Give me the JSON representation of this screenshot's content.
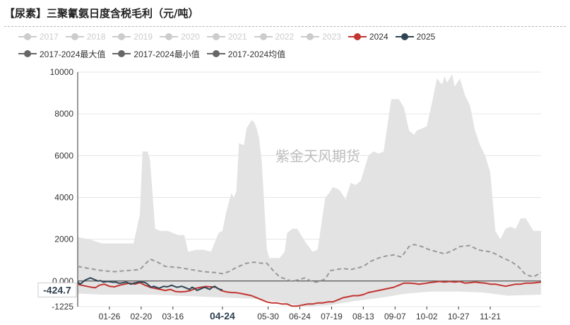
{
  "title": "【尿素】三聚氰氨日度含税毛利（元/吨）",
  "watermark": "紫金天风期货",
  "colors": {
    "inactive": "#cccccc",
    "s2024": "#c23531",
    "s2025": "#2f4554",
    "gray": "#666666",
    "range": "#e3e3e3",
    "mean": "#999999"
  },
  "legend": [
    {
      "name": "2017",
      "active": false
    },
    {
      "name": "2018",
      "active": false
    },
    {
      "name": "2019",
      "active": false
    },
    {
      "name": "2020",
      "active": false
    },
    {
      "name": "2021",
      "active": false
    },
    {
      "name": "2022",
      "active": false
    },
    {
      "name": "2023",
      "active": false
    },
    {
      "name": "2024",
      "active": true
    },
    {
      "name": "2025",
      "active": true
    },
    {
      "name": "2017-2024最大值",
      "active": true
    },
    {
      "name": "2017-2024最小值",
      "active": true
    },
    {
      "name": "2017-2024均值",
      "active": true
    }
  ],
  "chart_data": {
    "type": "line",
    "title": "【尿素】三聚氰氨日度含税毛利（元/吨）",
    "xlabel": "",
    "ylabel": "",
    "ylim": [
      -1225,
      10000
    ],
    "y_ticks": [
      "10000",
      "8000",
      "6000",
      "4000",
      "2000",
      "0.000",
      "-1225"
    ],
    "x_ticks": [
      "01-26",
      "02-20",
      "03-16",
      "04-24",
      "05-30",
      "06-24",
      "07-19",
      "08-13",
      "09-07",
      "10-02",
      "10-27",
      "11-21"
    ],
    "hover": {
      "x_label": "04-24",
      "y_label": "-424.7"
    },
    "grid": true,
    "legend_position": "top",
    "x_day_range": [
      1,
      366
    ],
    "tick_days": [
      26,
      51,
      76,
      115,
      151,
      176,
      201,
      226,
      251,
      276,
      301,
      326
    ],
    "max": {
      "x": [
        1,
        10,
        20,
        30,
        45,
        50,
        52,
        56,
        58,
        62,
        66,
        72,
        80,
        85,
        88,
        95,
        100,
        106,
        110,
        112,
        115,
        118,
        122,
        124,
        126,
        128,
        132,
        134,
        138,
        140,
        142,
        144,
        146,
        150,
        152,
        155,
        160,
        164,
        166,
        170,
        174,
        180,
        186,
        190,
        196,
        199,
        202,
        206,
        208,
        212,
        216,
        220,
        224,
        226,
        230,
        234,
        238,
        242,
        248,
        254,
        258,
        262,
        266,
        268,
        272,
        276,
        280,
        284,
        288,
        290,
        292,
        296,
        298,
        302,
        306,
        310,
        314,
        318,
        322,
        326,
        330,
        334,
        338,
        342,
        346,
        350,
        354,
        360,
        366
      ],
      "y": [
        2100,
        2000,
        1800,
        1800,
        1800,
        3200,
        6200,
        6200,
        5800,
        2500,
        2400,
        2400,
        2200,
        2200,
        1400,
        1500,
        1500,
        1400,
        2000,
        2300,
        2400,
        3300,
        4200,
        4000,
        4300,
        6600,
        6500,
        7300,
        7700,
        7600,
        7300,
        6800,
        5700,
        1500,
        1100,
        1100,
        1100,
        1400,
        2300,
        2500,
        2500,
        1900,
        1400,
        1500,
        4000,
        4200,
        4500,
        4400,
        4300,
        3900,
        4700,
        4600,
        4800,
        5200,
        6000,
        6200,
        6100,
        6200,
        8700,
        8700,
        8300,
        7200,
        7000,
        7200,
        7300,
        7400,
        8500,
        9700,
        9400,
        9800,
        9500,
        9900,
        9300,
        9700,
        8900,
        8400,
        7200,
        6500,
        6000,
        5200,
        2400,
        2000,
        2500,
        2600,
        2500,
        3000,
        3000,
        2400,
        2400
      ]
    },
    "min": {
      "x": [
        1,
        20,
        40,
        60,
        80,
        100,
        120,
        140,
        160,
        180,
        200,
        220,
        240,
        260,
        280,
        300,
        320,
        340,
        366
      ],
      "y": [
        -600,
        -650,
        -650,
        -650,
        -700,
        -750,
        -800,
        -850,
        -1000,
        -1225,
        -1150,
        -950,
        -800,
        -600,
        -500,
        -500,
        -550,
        -700,
        -650
      ]
    },
    "mean": {
      "x": [
        1,
        10,
        20,
        30,
        40,
        50,
        58,
        64,
        70,
        80,
        90,
        100,
        110,
        115,
        120,
        126,
        130,
        134,
        140,
        146,
        150,
        155,
        160,
        170,
        180,
        186,
        190,
        196,
        200,
        210,
        216,
        220,
        226,
        232,
        238,
        244,
        250,
        256,
        262,
        266,
        272,
        278,
        284,
        290,
        296,
        302,
        310,
        316,
        320,
        326,
        330,
        336,
        342,
        348,
        354,
        360,
        366
      ],
      "y": [
        700,
        600,
        500,
        450,
        500,
        550,
        1050,
        900,
        700,
        650,
        550,
        450,
        400,
        350,
        450,
        650,
        750,
        850,
        900,
        850,
        850,
        500,
        200,
        -20,
        150,
        -50,
        -50,
        100,
        500,
        600,
        550,
        600,
        700,
        950,
        1100,
        1200,
        1250,
        1150,
        1650,
        1750,
        1650,
        1500,
        1400,
        1300,
        1450,
        1650,
        1700,
        1500,
        1450,
        1400,
        1300,
        1100,
        950,
        700,
        300,
        200,
        400
      ]
    },
    "series": [
      {
        "name": "2024",
        "x": [
          1,
          4,
          8,
          12,
          15,
          18,
          22,
          26,
          30,
          34,
          38,
          42,
          46,
          50,
          54,
          58,
          62,
          66,
          70,
          74,
          78,
          82,
          86,
          90,
          94,
          98,
          102,
          106,
          110,
          114,
          118,
          122,
          126,
          130,
          134,
          138,
          142,
          146,
          150,
          154,
          158,
          162,
          166,
          170,
          174,
          178,
          182,
          186,
          190,
          194,
          198,
          202,
          206,
          210,
          214,
          218,
          222,
          226,
          230,
          234,
          238,
          242,
          246,
          250,
          254,
          258,
          262,
          266,
          270,
          274,
          278,
          282,
          286,
          290,
          294,
          298,
          302,
          306,
          310,
          314,
          318,
          322,
          326,
          330,
          334,
          338,
          342,
          346,
          350,
          354,
          358,
          362,
          366
        ],
        "y": [
          -150,
          -200,
          -250,
          -300,
          -320,
          -200,
          -150,
          -250,
          -280,
          -200,
          -150,
          -100,
          -150,
          -80,
          -200,
          -300,
          -350,
          -400,
          -450,
          -400,
          -500,
          -520,
          -500,
          -450,
          -350,
          -300,
          -260,
          -280,
          -300,
          -450,
          -520,
          -550,
          -560,
          -600,
          -650,
          -700,
          -800,
          -900,
          -1000,
          -1050,
          -1050,
          -1100,
          -1100,
          -1200,
          -1200,
          -1150,
          -1100,
          -1100,
          -1050,
          -1050,
          -1000,
          -1000,
          -900,
          -800,
          -750,
          -700,
          -700,
          -650,
          -550,
          -500,
          -450,
          -400,
          -350,
          -300,
          -200,
          -100,
          -100,
          -120,
          -150,
          -120,
          -80,
          -50,
          -20,
          -50,
          -20,
          -50,
          -20,
          -100,
          -80,
          -50,
          -80,
          -100,
          -150,
          -150,
          -200,
          -250,
          -200,
          -150,
          -150,
          -100,
          -100,
          -80,
          -50
        ]
      },
      {
        "name": "2025",
        "x": [
          1,
          3,
          5,
          7,
          9,
          11,
          13,
          15,
          17,
          19,
          21,
          23,
          25,
          27,
          29,
          31,
          33,
          35,
          37,
          39,
          41,
          43,
          45,
          47,
          49,
          51,
          53,
          55,
          57,
          59,
          61,
          63,
          65,
          67,
          69,
          71,
          73,
          75,
          77,
          79,
          81,
          83,
          85,
          87,
          89,
          91,
          93,
          95,
          97,
          99,
          101,
          103,
          105,
          107,
          109,
          111,
          113,
          115
        ],
        "y": [
          -50,
          -150,
          -50,
          50,
          100,
          150,
          100,
          50,
          0,
          20,
          -50,
          -30,
          -20,
          -40,
          -60,
          -50,
          -100,
          -100,
          -80,
          -50,
          -100,
          -150,
          -100,
          -80,
          -50,
          -50,
          -60,
          -100,
          -200,
          -300,
          -250,
          -300,
          -350,
          -300,
          -250,
          -280,
          -250,
          -200,
          -250,
          -300,
          -280,
          -250,
          -300,
          -350,
          -400,
          -300,
          -350,
          -450,
          -400,
          -350,
          -300,
          -350,
          -400,
          -300,
          -250,
          -350,
          -400,
          -424.7
        ]
      }
    ]
  }
}
